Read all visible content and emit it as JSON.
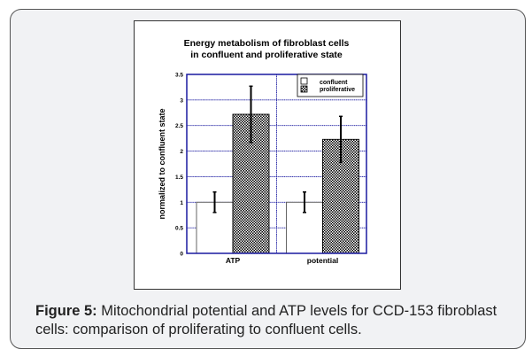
{
  "chart_data": {
    "type": "bar",
    "title": [
      "Energy metabolism of fibroblast cells",
      "in confluent and proliferative state"
    ],
    "xlabel": "",
    "ylabel": "normalized to confluent state",
    "categories": [
      "ATP",
      "potential"
    ],
    "series": [
      {
        "name": "confluent",
        "values": [
          1.0,
          1.0
        ],
        "errors": [
          0.2,
          0.2
        ],
        "fill": "#ffffff"
      },
      {
        "name": "proliferative",
        "values": [
          2.72,
          2.23
        ],
        "errors": [
          0.55,
          0.45
        ],
        "fill": "checker"
      }
    ],
    "ylim": [
      0,
      3.5
    ],
    "yticks": [
      "0",
      "0.5",
      "1",
      "1.5",
      "2",
      "2.5",
      "3",
      "3.5"
    ],
    "grid": true,
    "grid_color": "#1a1aa0",
    "legend_position": "top-right"
  },
  "caption": {
    "label": "Figure 5:",
    "text": " Mitochondrial potential and ATP levels for CCD-153 fibroblast cells:  comparison of proliferating to confluent cells."
  }
}
